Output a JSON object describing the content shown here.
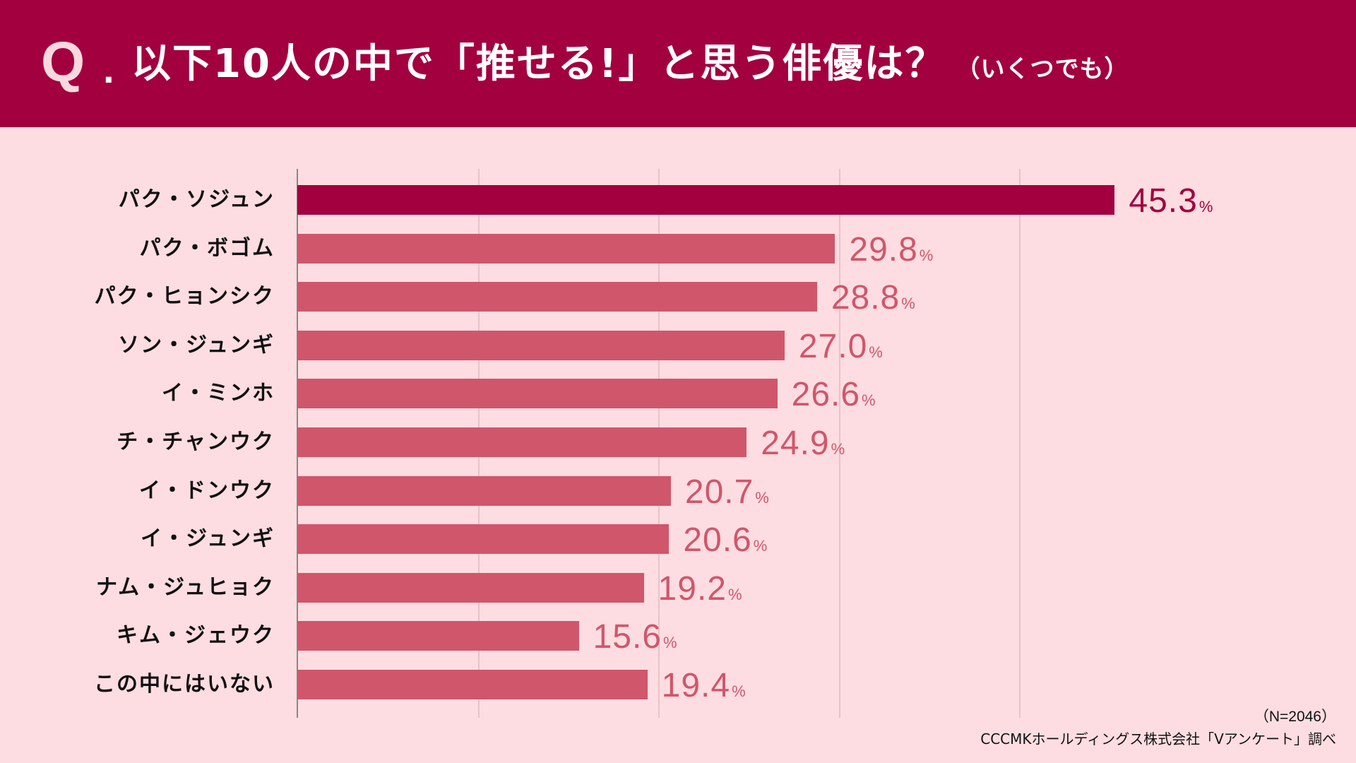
{
  "header": {
    "q_mark": "Q",
    "q_dot": ".",
    "title": "以下10人の中で「推せる!」と思う俳優は？",
    "subtitle": "（いくつでも）"
  },
  "chart_data": {
    "type": "bar",
    "orientation": "horizontal",
    "categories": [
      "パク・ソジュン",
      "パク・ボゴム",
      "パク・ヒョンシク",
      "ソン・ジュンギ",
      "イ・ミンホ",
      "チ・チャンウク",
      "イ・ドンウク",
      "イ・ジュンギ",
      "ナム・ジュヒョク",
      "キム・ジェウク",
      "この中にはいない"
    ],
    "values": [
      45.3,
      29.8,
      28.8,
      27.0,
      26.6,
      24.9,
      20.7,
      20.6,
      19.2,
      15.6,
      19.4
    ],
    "value_labels": [
      "45.3",
      "29.8",
      "28.8",
      "27.0",
      "26.6",
      "24.9",
      "20.7",
      "20.6",
      "19.2",
      "15.6",
      "19.4"
    ],
    "unit": "%",
    "xlim": [
      0,
      50
    ],
    "gridlines": [
      10,
      20,
      30,
      40
    ],
    "grid": true,
    "colors": {
      "highlight": "#a3003f",
      "bar": "#d0566c",
      "grid": "#e6c3c9",
      "axis": "#888888"
    }
  },
  "footer": {
    "sample": "（N=2046）",
    "source": "CCCMKホールディングス株式会社「Vアンケート」調べ"
  }
}
